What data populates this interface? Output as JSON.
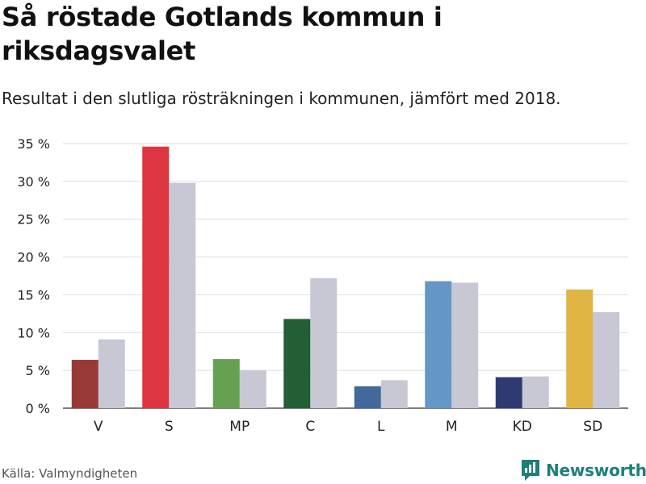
{
  "title": "Så röstade Gotlands kommun i riksdagsvalet",
  "subtitle": "Resultat i den slutliga rösträkningen i kommunen, jämfört med 2018.",
  "source": "Källa: Valmyndigheten",
  "brand": {
    "name": "Newsworthy",
    "icon": "newsworthy-logo-icon",
    "color": "#1e7f78"
  },
  "chart_data": {
    "type": "bar",
    "categories": [
      "V",
      "S",
      "MP",
      "C",
      "L",
      "M",
      "KD",
      "SD"
    ],
    "series": [
      {
        "values": [
          6.4,
          34.6,
          6.5,
          11.8,
          2.9,
          16.8,
          4.1,
          15.7
        ]
      },
      {
        "values": [
          9.1,
          29.8,
          5.0,
          17.2,
          3.7,
          16.6,
          4.2,
          12.7
        ]
      }
    ],
    "colors": [
      "#9a3a37",
      "#dd3640",
      "#66a153",
      "#235e34",
      "#43689a",
      "#6497c6",
      "#2e3a72",
      "#dfb443"
    ],
    "comparison_color": "#c8c8d4",
    "ylim": [
      0,
      35
    ],
    "yticks": [
      0,
      5,
      10,
      15,
      20,
      25,
      30,
      35
    ],
    "ytick_labels": [
      "0 %",
      "5 %",
      "10 %",
      "15 %",
      "20 %",
      "25 %",
      "30 %",
      "35 %"
    ],
    "grid": true,
    "xlabel": "",
    "ylabel": ""
  }
}
